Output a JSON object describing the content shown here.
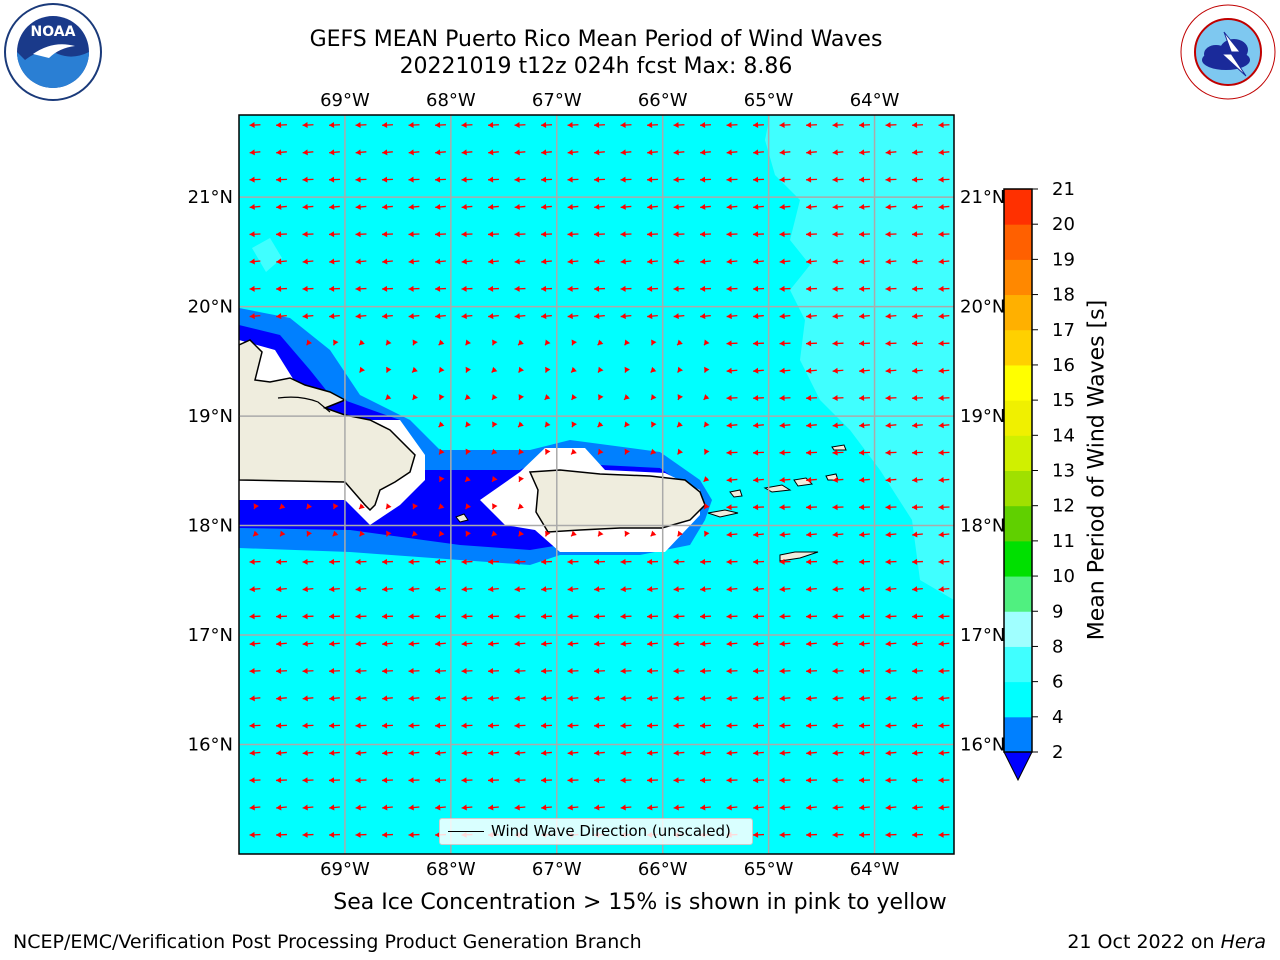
{
  "title_line1": "GEFS MEAN Puerto Rico Mean Period of Wind Waves",
  "title_line2": "20221019 t12z 024h fcst   Max: 8.86",
  "logos": {
    "left": {
      "icon": "noaa-logo-icon",
      "text": "NOAA",
      "ring_text": "NATIONAL OCEANIC AND ATMOSPHERIC ADMINISTRATION · U.S. DEPARTMENT OF COMMERCE"
    },
    "right": {
      "icon": "nws-logo-icon",
      "ring_text": "NATIONAL WEATHER SERVICE"
    }
  },
  "map": {
    "lon_ticks": [
      "69°W",
      "68°W",
      "67°W",
      "66°W",
      "65°W",
      "64°W"
    ],
    "lat_ticks": [
      "21°N",
      "20°N",
      "19°N",
      "18°N",
      "17°N",
      "16°N"
    ],
    "lon_values": [
      -69,
      -68,
      -67,
      -66,
      -65,
      -64
    ],
    "lat_values": [
      21,
      20,
      19,
      18,
      17,
      16
    ],
    "lon_range": [
      -70.0,
      -63.25
    ],
    "lat_range": [
      15.0,
      21.75
    ],
    "grid": true,
    "arrow_color": "#ff0000",
    "legend_label": "Wind Wave Direction (unscaled)",
    "ocean_color": "#00ffff",
    "land_color": "#efedde"
  },
  "colorbar": {
    "label": "Mean Period of Wind Waves [s]",
    "levels": [
      "2",
      "4",
      "6",
      "8",
      "9",
      "10",
      "11",
      "12",
      "13",
      "14",
      "15",
      "16",
      "17",
      "18",
      "19",
      "20",
      "21"
    ],
    "colors": [
      "#0080ff",
      "#00ffff",
      "#40ffff",
      "#a0ffff",
      "#50f080",
      "#00e000",
      "#60d000",
      "#a0e000",
      "#d0f000",
      "#f0f000",
      "#ffff00",
      "#ffd000",
      "#ffb000",
      "#ff8800",
      "#ff6000",
      "#ff3000"
    ],
    "under_color": "#0000ff",
    "over_color": "#ff0000"
  },
  "sea_ice_note": "Sea Ice Concentration > 15% is shown in pink to yellow",
  "footer": {
    "left": "NCEP/EMC/Verification Post Processing Product Generation Branch",
    "date": "21 Oct 2022 on",
    "host": "Hera"
  }
}
